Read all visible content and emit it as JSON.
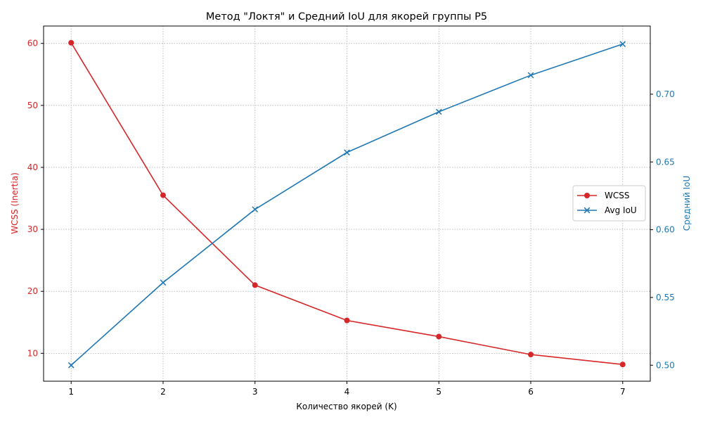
{
  "chart_data": {
    "type": "line",
    "title": "Метод \"Локтя\" и Средний IoU для якорей группы P5",
    "xlabel": "Количество якорей (K)",
    "ylabel_left": "WCSS (Inertia)",
    "ylabel_right": "Средний IoU",
    "x": [
      1,
      2,
      3,
      4,
      5,
      6,
      7
    ],
    "xlim": [
      0.7,
      7.3
    ],
    "x_ticks": [
      "1",
      "2",
      "3",
      "4",
      "5",
      "6",
      "7"
    ],
    "y_left_lim": [
      5.5,
      62.8
    ],
    "y_left_ticks": [
      "10",
      "20",
      "30",
      "40",
      "50",
      "60"
    ],
    "y_right_lim": [
      0.4882,
      0.7503
    ],
    "y_right_ticks": [
      "0.50",
      "0.55",
      "0.60",
      "0.65",
      "0.70"
    ],
    "grid": true,
    "legend_position": "center-right",
    "series": [
      {
        "name": "WCSS",
        "axis": "left",
        "color": "#d62728",
        "marker": "circle",
        "values": [
          60.1,
          35.5,
          21.0,
          15.3,
          12.7,
          9.8,
          8.2
        ]
      },
      {
        "name": "Avg IoU",
        "axis": "right",
        "color": "#1f77b4",
        "marker": "x",
        "values": [
          0.5,
          0.561,
          0.615,
          0.657,
          0.687,
          0.714,
          0.737
        ]
      }
    ]
  }
}
